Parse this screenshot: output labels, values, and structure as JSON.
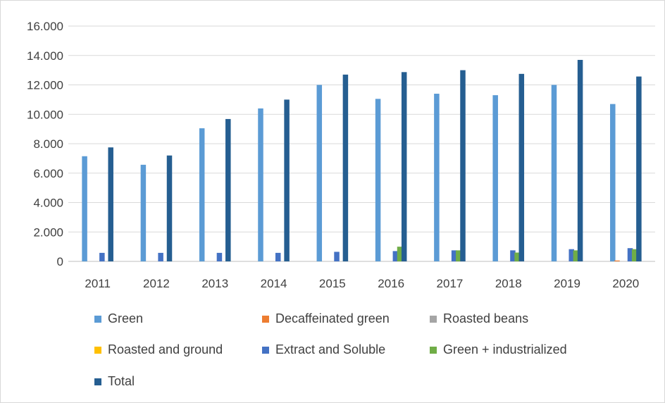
{
  "chart_data": {
    "type": "bar",
    "title": "",
    "xlabel": "",
    "ylabel": "",
    "ylim": [
      0,
      16000
    ],
    "grid": true,
    "legend_position": "bottom",
    "categories": [
      "2011",
      "2012",
      "2013",
      "2014",
      "2015",
      "2016",
      "2017",
      "2018",
      "2019",
      "2020"
    ],
    "y_tick_values": [
      0,
      2000,
      4000,
      6000,
      8000,
      10000,
      12000,
      14000,
      16000
    ],
    "y_tick_labels": [
      "0",
      "2.000",
      "4.000",
      "6.000",
      "8.000",
      "10.000",
      "12.000",
      "14.000",
      "16.000"
    ],
    "series": [
      {
        "name": "Green",
        "color": "#5b9bd5",
        "values": [
          7150,
          6570,
          9050,
          10400,
          12000,
          11050,
          11400,
          11300,
          12000,
          10700
        ]
      },
      {
        "name": "Decaffeinated green",
        "color": "#ed7d31",
        "values": [
          0,
          0,
          0,
          0,
          0,
          0,
          0,
          0,
          0,
          60
        ]
      },
      {
        "name": "Roasted beans",
        "color": "#a5a5a5",
        "values": [
          0,
          0,
          0,
          0,
          0,
          0,
          0,
          0,
          0,
          0
        ]
      },
      {
        "name": "Roasted and ground",
        "color": "#ffc000",
        "values": [
          0,
          0,
          0,
          0,
          0,
          0,
          0,
          0,
          0,
          0
        ]
      },
      {
        "name": "Extract and Soluble",
        "color": "#4472c4",
        "values": [
          580,
          580,
          580,
          580,
          650,
          700,
          750,
          750,
          830,
          900
        ]
      },
      {
        "name": "Green + industrialized",
        "color": "#70ad47",
        "values": [
          0,
          0,
          0,
          0,
          0,
          1000,
          750,
          600,
          750,
          830
        ]
      },
      {
        "name": "Total",
        "color": "#255e91",
        "values": [
          7750,
          7200,
          9680,
          11000,
          12700,
          12870,
          13000,
          12750,
          13700,
          12570
        ]
      }
    ]
  }
}
